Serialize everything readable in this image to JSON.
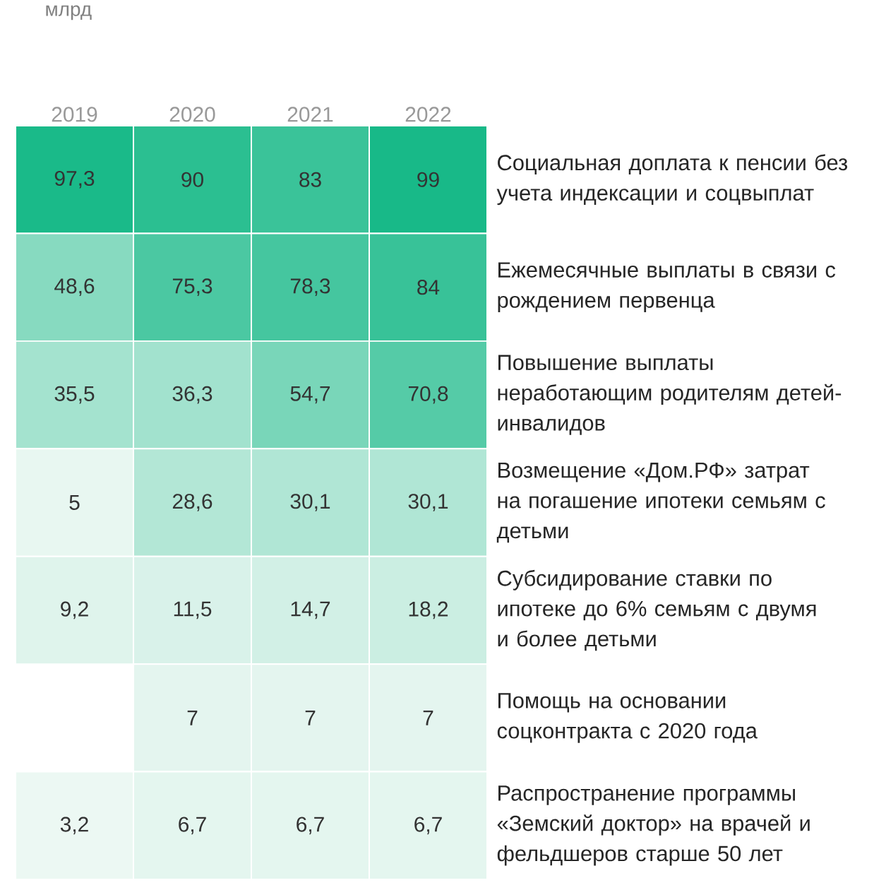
{
  "chart_data": {
    "type": "heatmap",
    "title": "млрд",
    "categories": [
      "2019",
      "2020",
      "2021",
      "2022"
    ],
    "y_categories": [
      "Социальная доплата к пенсии без учета индексации и соцвыплат",
      "Ежемесячные выплаты в связи с рождением первенца",
      "Повышение выплаты неработающим родителям детей-инвалидов",
      "Возмещение «Дом.РФ» затрат на погашение ипотеки семьям с детьми",
      "Субсидирование ставки по ипотеке до 6% семьям с двумя и более детьми",
      "Помощь на основании соцконтракта с 2020 года",
      "Распространение программы «Земский доктор» на врачей и фельдшеров старше 50 лет"
    ],
    "cells": [
      [
        97.3,
        90,
        83,
        99
      ],
      [
        48.6,
        75.3,
        78.3,
        84
      ],
      [
        35.5,
        36.3,
        54.7,
        70.8
      ],
      [
        5,
        28.6,
        30.1,
        30.1
      ],
      [
        9.2,
        11.5,
        14.7,
        18.2
      ],
      [
        null,
        7,
        7,
        7
      ],
      [
        3.2,
        6.7,
        6.7,
        6.7
      ]
    ],
    "cell_labels": [
      [
        "97,3",
        "90",
        "83",
        "99"
      ],
      [
        "48,6",
        "75,3",
        "78,3",
        "84"
      ],
      [
        "35,5",
        "36,3",
        "54,7",
        "70,8"
      ],
      [
        "5",
        "28,6",
        "30,1",
        "30,1"
      ],
      [
        "9,2",
        "11,5",
        "14,7",
        "18,2"
      ],
      [
        null,
        "7",
        "7",
        "7"
      ],
      [
        "3,2",
        "6,7",
        "6,7",
        "6,7"
      ]
    ]
  }
}
